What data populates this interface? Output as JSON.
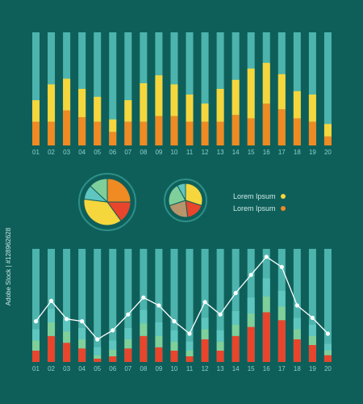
{
  "colors": {
    "background": "#0e5f5a",
    "track": "#4db3ad",
    "yellow": "#f5d63d",
    "orange": "#f08a22",
    "red": "#e8452c",
    "light_teal": "#5ec6bf",
    "green": "#7fcf9a",
    "tan": "#b8956a",
    "line": "#ffffff",
    "tick_label": "#8fd0cb",
    "legend_text": "#cfe9e6",
    "ring": "#2e8f88"
  },
  "legend": {
    "items": [
      {
        "label": "Lorem Ipsum",
        "color": "#f5d63d"
      },
      {
        "label": "Lorem Ipsum",
        "color": "#f08a22"
      }
    ]
  },
  "side_label": "Adobe Stock | #128962628",
  "chart_data": [
    {
      "type": "bar",
      "stacked": true,
      "categories": [
        "01",
        "02",
        "03",
        "04",
        "05",
        "06",
        "07",
        "08",
        "09",
        "10",
        "11",
        "12",
        "13",
        "14",
        "15",
        "16",
        "17",
        "18",
        "19",
        "20"
      ],
      "ylim": [
        0,
        100
      ],
      "series": [
        {
          "color": "#f08a22",
          "values": [
            21,
            21,
            31,
            25,
            21,
            12,
            21,
            21,
            26,
            26,
            21,
            21,
            21,
            27,
            24,
            37,
            32,
            24,
            21,
            8
          ]
        },
        {
          "color": "#f5d63d",
          "values": [
            19,
            33,
            28,
            25,
            22,
            11,
            19,
            34,
            36,
            28,
            24,
            16,
            29,
            31,
            44,
            36,
            31,
            24,
            24,
            11
          ]
        }
      ]
    },
    {
      "type": "pie",
      "slices": [
        {
          "color": "#f08a22",
          "value": 25
        },
        {
          "color": "#e8452c",
          "value": 15
        },
        {
          "color": "#f5d63d",
          "value": 37
        },
        {
          "color": "#5ec6bf",
          "value": 10
        },
        {
          "color": "#7fcf9a",
          "value": 13
        }
      ]
    },
    {
      "type": "pie",
      "slices": [
        {
          "color": "#f5d63d",
          "value": 30
        },
        {
          "color": "#e8452c",
          "value": 18
        },
        {
          "color": "#b8956a",
          "value": 22
        },
        {
          "color": "#7fcf9a",
          "value": 22
        },
        {
          "color": "#5ec6bf",
          "value": 8
        }
      ]
    },
    {
      "type": "bar",
      "stacked": true,
      "with_line": true,
      "categories": [
        "01",
        "02",
        "03",
        "04",
        "05",
        "06",
        "07",
        "08",
        "09",
        "10",
        "11",
        "12",
        "13",
        "14",
        "15",
        "16",
        "17",
        "18",
        "19",
        "20"
      ],
      "ylim": [
        0,
        100
      ],
      "series": [
        {
          "color": "#e8452c",
          "values": [
            10,
            23,
            17,
            12,
            3,
            5,
            12,
            23,
            13,
            10,
            5,
            20,
            10,
            23,
            31,
            44,
            37,
            20,
            15,
            6
          ]
        },
        {
          "color": "#7fcf9a",
          "values": [
            9,
            12,
            10,
            8,
            3,
            6,
            8,
            11,
            10,
            8,
            5,
            9,
            8,
            10,
            12,
            14,
            12,
            9,
            8,
            4
          ]
        },
        {
          "color": "#5ec6bf",
          "values": [
            10,
            12,
            12,
            10,
            7,
            8,
            10,
            12,
            12,
            10,
            8,
            10,
            10,
            12,
            14,
            16,
            14,
            10,
            10,
            6
          ]
        }
      ],
      "line": [
        36,
        54,
        38,
        36,
        20,
        28,
        42,
        57,
        50,
        36,
        25,
        53,
        42,
        61,
        77,
        93,
        84,
        50,
        39,
        25
      ]
    }
  ]
}
